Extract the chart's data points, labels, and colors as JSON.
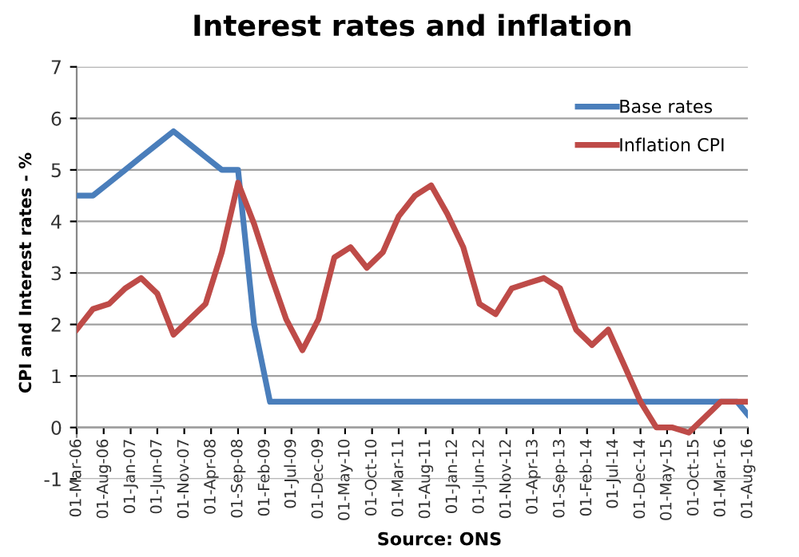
{
  "chart_data": {
    "type": "line",
    "title": "Interest rates and inflation",
    "ylabel": "CPI and Interest rates - %",
    "x": [
      "2006-03-01",
      "2006-06-01",
      "2006-09-01",
      "2006-12-01",
      "2007-03-01",
      "2007-06-01",
      "2007-09-01",
      "2007-12-01",
      "2008-03-01",
      "2008-06-01",
      "2008-09-01",
      "2008-12-01",
      "2009-03-01",
      "2009-06-01",
      "2009-09-01",
      "2009-12-01",
      "2010-03-01",
      "2010-06-01",
      "2010-09-01",
      "2010-12-01",
      "2011-03-01",
      "2011-06-01",
      "2011-09-01",
      "2011-12-01",
      "2012-03-01",
      "2012-06-01",
      "2012-09-01",
      "2012-12-01",
      "2013-03-01",
      "2013-06-01",
      "2013-09-01",
      "2013-12-01",
      "2014-03-01",
      "2014-06-01",
      "2014-09-01",
      "2014-12-01",
      "2015-03-01",
      "2015-06-01",
      "2015-09-01",
      "2015-12-01",
      "2016-03-01",
      "2016-06-01",
      "2016-08-01"
    ],
    "series": [
      {
        "name": "Base rates",
        "color": "#4a7ebb",
        "values": [
          4.5,
          4.5,
          4.75,
          5.0,
          5.25,
          5.5,
          5.75,
          5.5,
          5.25,
          5.0,
          5.0,
          2.0,
          0.5,
          0.5,
          0.5,
          0.5,
          0.5,
          0.5,
          0.5,
          0.5,
          0.5,
          0.5,
          0.5,
          0.5,
          0.5,
          0.5,
          0.5,
          0.5,
          0.5,
          0.5,
          0.5,
          0.5,
          0.5,
          0.5,
          0.5,
          0.5,
          0.5,
          0.5,
          0.5,
          0.5,
          0.5,
          0.5,
          0.25
        ]
      },
      {
        "name": "Inflation CPI",
        "color": "#be4b48",
        "values": [
          1.9,
          2.3,
          2.4,
          2.7,
          2.9,
          2.6,
          1.8,
          2.1,
          2.4,
          3.4,
          4.75,
          3.95,
          3.0,
          2.1,
          1.5,
          2.1,
          3.3,
          3.5,
          3.1,
          3.4,
          4.1,
          4.5,
          4.7,
          4.15,
          3.5,
          2.4,
          2.2,
          2.7,
          2.8,
          2.9,
          2.7,
          1.9,
          1.6,
          1.9,
          1.2,
          0.5,
          0.0,
          0.0,
          -0.1,
          0.2,
          0.5,
          0.5,
          0.5
        ]
      }
    ],
    "xlim": [
      "2006-03-01",
      "2016-08-01"
    ],
    "xticks": [
      {
        "value": "2006-03-01",
        "label": "01-Mar-06"
      },
      {
        "value": "2006-08-01",
        "label": "01-Aug-06"
      },
      {
        "value": "2007-01-01",
        "label": "01-Jan-07"
      },
      {
        "value": "2007-06-01",
        "label": "01-Jun-07"
      },
      {
        "value": "2007-11-01",
        "label": "01-Nov-07"
      },
      {
        "value": "2008-04-01",
        "label": "01-Apr-08"
      },
      {
        "value": "2008-09-01",
        "label": "01-Sep-08"
      },
      {
        "value": "2009-02-01",
        "label": "01-Feb-09"
      },
      {
        "value": "2009-07-01",
        "label": "01-Jul-09"
      },
      {
        "value": "2009-12-01",
        "label": "01-Dec-09"
      },
      {
        "value": "2010-05-01",
        "label": "01-May-10"
      },
      {
        "value": "2010-10-01",
        "label": "01-Oct-10"
      },
      {
        "value": "2011-03-01",
        "label": "01-Mar-11"
      },
      {
        "value": "2011-08-01",
        "label": "01-Aug-11"
      },
      {
        "value": "2012-01-01",
        "label": "01-Jan-12"
      },
      {
        "value": "2012-06-01",
        "label": "01-Jun-12"
      },
      {
        "value": "2012-11-01",
        "label": "01-Nov-12"
      },
      {
        "value": "2013-04-01",
        "label": "01-Apr-13"
      },
      {
        "value": "2013-09-01",
        "label": "01-Sep-13"
      },
      {
        "value": "2014-02-01",
        "label": "01-Feb-14"
      },
      {
        "value": "2014-07-01",
        "label": "01-Jul-14"
      },
      {
        "value": "2014-12-01",
        "label": "01-Dec-14"
      },
      {
        "value": "2015-05-01",
        "label": "01-May-15"
      },
      {
        "value": "2015-10-01",
        "label": "01-Oct-15"
      },
      {
        "value": "2016-03-01",
        "label": "01-Mar-16"
      },
      {
        "value": "2016-08-01",
        "label": "01-Aug-16"
      }
    ],
    "ylim": [
      -1,
      7
    ],
    "yticks": [
      -1,
      0,
      1,
      2,
      3,
      4,
      5,
      6,
      7
    ],
    "grid": "y",
    "legend": "top right",
    "marker": "none",
    "line_style": "solid",
    "annotations": [
      "Source: ONS"
    ]
  }
}
